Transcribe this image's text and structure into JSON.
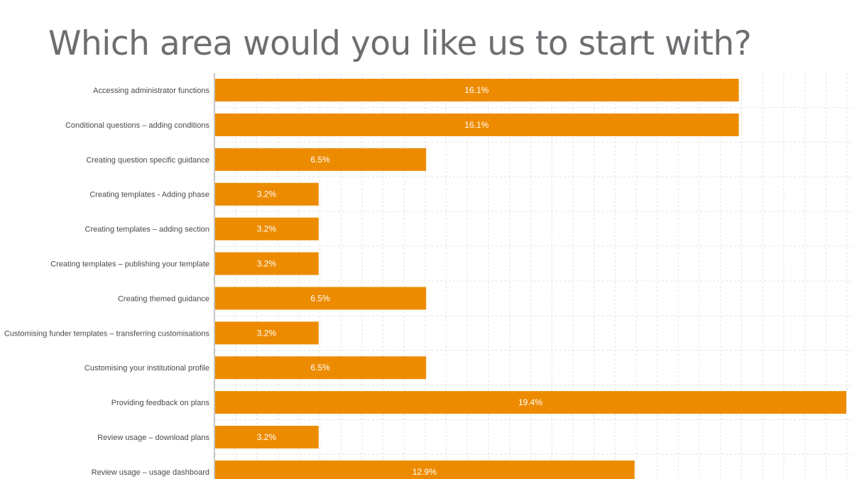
{
  "title": "Which area would you like us to start with?",
  "colors": {
    "bar": "#ed8b00",
    "grid": "#e3e3e3",
    "axis": "#8c8c8c",
    "title": "#6d6e71"
  },
  "chart_data": {
    "type": "bar",
    "orientation": "horizontal",
    "title": "Which area would you like us to start with?",
    "xlabel": "",
    "ylabel": "",
    "xlim": [
      0,
      19.4
    ],
    "grid": true,
    "legend": "none",
    "categories": [
      "Accessing administrator functions",
      "Conditional questions – adding conditions",
      "Creating question specific guidance",
      "Creating templates - Adding phase",
      "Creating templates – adding section",
      "Creating templates – publishing your template",
      "Creating themed guidance",
      "Customising funder templates – transferring customisations",
      "Customising your institutional profile",
      "Providing feedback on plans",
      "Review usage – download plans",
      "Review usage – usage dashboard"
    ],
    "values": [
      16.1,
      16.1,
      6.5,
      3.2,
      3.2,
      3.2,
      6.5,
      3.2,
      6.5,
      19.4,
      3.2,
      12.9
    ],
    "value_labels": [
      "16.1%",
      "16.1%",
      "6.5%",
      "3.2%",
      "3.2%",
      "3.2%",
      "6.5%",
      "3.2%",
      "6.5%",
      "19.4%",
      "3.2%",
      "12.9%"
    ]
  }
}
